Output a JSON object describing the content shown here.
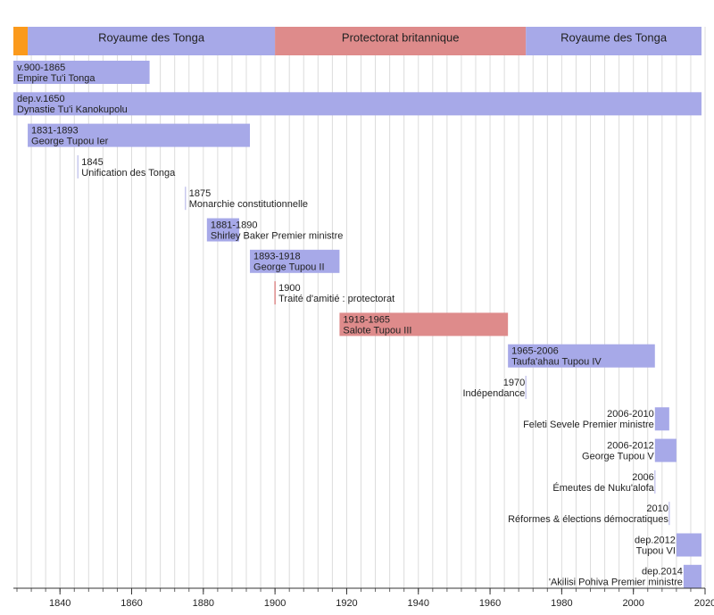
{
  "chart_data": {
    "type": "timeline",
    "xlim": [
      1827,
      2020
    ],
    "xticks": [
      1840,
      1860,
      1880,
      1900,
      1920,
      1940,
      1960,
      1980,
      2000,
      2020
    ],
    "minor_xticks": [
      1828,
      1832,
      1836,
      1840,
      1844,
      1848,
      1852,
      1856,
      1860,
      1864,
      1868,
      1872,
      1876,
      1880,
      1884,
      1888,
      1892,
      1896,
      1900,
      1904,
      1908,
      1912,
      1916,
      1920,
      1924,
      1928,
      1932,
      1936,
      1940,
      1944,
      1948,
      1952,
      1956,
      1960,
      1964,
      1968,
      1972,
      1976,
      1980,
      1984,
      1988,
      1992,
      1996,
      2000,
      2004,
      2008,
      2012,
      2016,
      2020
    ],
    "grid": true,
    "eras": [
      {
        "start": 1827,
        "end": 1831,
        "color": "#fb9a1c"
      },
      {
        "name": "Royaume des Tonga",
        "start": 1831,
        "end": 1900,
        "color": "#a7a9e8"
      },
      {
        "name": "Protectorat britannique",
        "start": 1900,
        "end": 1970,
        "color": "#de8b8b"
      },
      {
        "name": "Royaume des Tonga",
        "start": 1970,
        "end": 2019,
        "color": "#a7a9e8"
      }
    ],
    "rows": [
      {
        "date": "v.900-1865",
        "name": "Empire Tu'i Tonga",
        "start": 900,
        "end": 1865,
        "color": "#a7a9e8",
        "align": "left"
      },
      {
        "date": "dep.v.1650",
        "name": "Dynastie Tu'i Kanokupolu",
        "start": 1650,
        "end": 2019,
        "color": "#a7a9e8",
        "align": "left"
      },
      {
        "date": "1831-1893",
        "name": "George Tupou Ier",
        "start": 1831,
        "end": 1893,
        "color": "#a7a9e8",
        "align": "left"
      },
      {
        "date": "1845",
        "name": "Unification des Tonga",
        "start": 1845,
        "end": null,
        "color": "#c8c9ee",
        "align": "left"
      },
      {
        "date": "1875",
        "name": "Monarchie constitutionnelle",
        "start": 1875,
        "end": null,
        "color": "#c8c9ee",
        "align": "left"
      },
      {
        "date": "1881-1890",
        "name": "Shirley Baker Premier ministre",
        "start": 1881,
        "end": 1890,
        "color": "#a7a9e8",
        "align": "left"
      },
      {
        "date": "1893-1918",
        "name": "George Tupou II",
        "start": 1893,
        "end": 1918,
        "color": "#a7a9e8",
        "align": "left"
      },
      {
        "date": "1900",
        "name": "Traité d'amitié : protectorat",
        "start": 1900,
        "end": null,
        "color": "#de8b8b",
        "align": "left"
      },
      {
        "date": "1918-1965",
        "name": "Salote Tupou III",
        "start": 1918,
        "end": 1965,
        "color": "#de8b8b",
        "align": "left"
      },
      {
        "date": "1965-2006",
        "name": "Taufa'ahau Tupou IV",
        "start": 1965,
        "end": 2006,
        "color": "#a7a9e8",
        "align": "left"
      },
      {
        "date": "1970",
        "name": "Indépendance",
        "start": 1970,
        "end": null,
        "color": "#c8c9ee",
        "align": "right"
      },
      {
        "date": "2006-2010",
        "name": "Feleti Sevele Premier ministre",
        "start": 2006,
        "end": 2010,
        "color": "#a7a9e8",
        "align": "right"
      },
      {
        "date": "2006-2012",
        "name": "George Tupou V",
        "start": 2006,
        "end": 2012,
        "color": "#a7a9e8",
        "align": "right"
      },
      {
        "date": "2006",
        "name": "Émeutes de Nuku'alofa",
        "start": 2006,
        "end": null,
        "color": "#c8c9ee",
        "align": "right"
      },
      {
        "date": "2010",
        "name": "Réformes & élections démocratiques",
        "start": 2010,
        "end": null,
        "color": "#c8c9ee",
        "align": "right"
      },
      {
        "date": "dep.2012",
        "name": "Tupou VI",
        "start": 2012,
        "end": 2019,
        "color": "#a7a9e8",
        "align": "right"
      },
      {
        "date": "dep.2014",
        "name": "'Akilisi Pohiva Premier ministre",
        "start": 2014,
        "end": 2019,
        "color": "#a7a9e8",
        "align": "right"
      }
    ]
  }
}
